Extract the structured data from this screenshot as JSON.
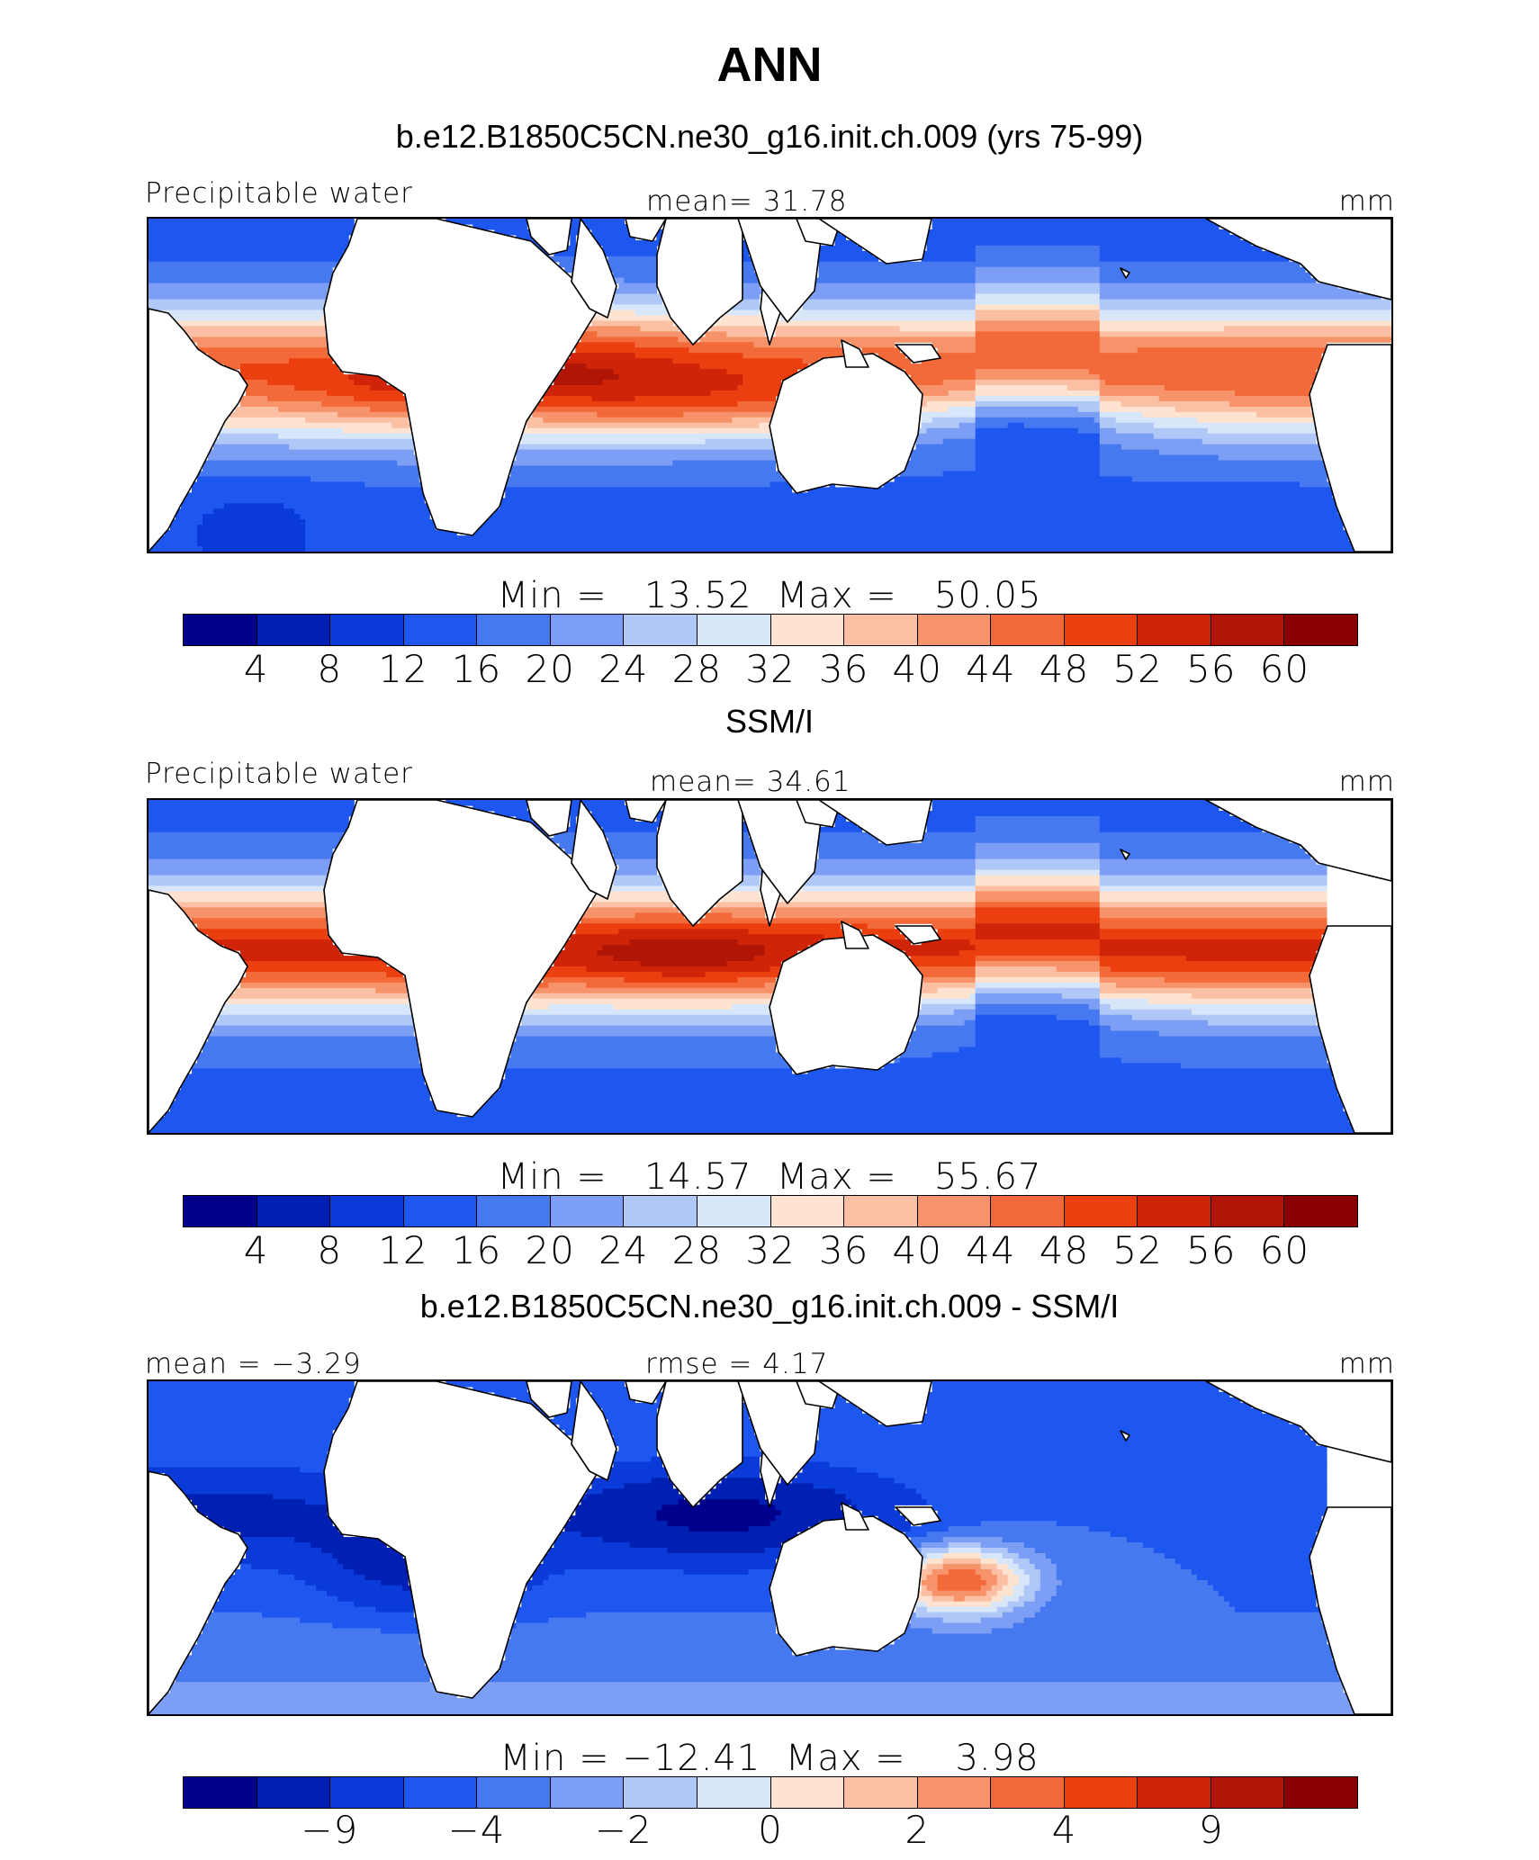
{
  "title": "ANN",
  "panels": [
    {
      "subtitle": "b.e12.B1850C5CN.ne30_g16.init.ch.009 (yrs 75-99)",
      "left_label": "Precipitable water",
      "center_label": "mean=  31.78",
      "right_label": "mm",
      "min_max": "Min =   13.52  Max =   50.05",
      "colorbar_ticks": [
        "4",
        "8",
        "12",
        "16",
        "20",
        "24",
        "28",
        "32",
        "36",
        "40",
        "44",
        "48",
        "52",
        "56",
        "60"
      ],
      "field": "model"
    },
    {
      "subtitle": "SSM/I",
      "left_label": "Precipitable water",
      "center_label": "mean=  34.61",
      "right_label": "mm",
      "min_max": "Min =   14.57  Max =   55.67",
      "colorbar_ticks": [
        "4",
        "8",
        "12",
        "16",
        "20",
        "24",
        "28",
        "32",
        "36",
        "40",
        "44",
        "48",
        "52",
        "56",
        "60"
      ],
      "field": "obs"
    },
    {
      "subtitle": "b.e12.B1850C5CN.ne30_g16.init.ch.009 - SSM/I",
      "left_label": "mean =  −3.29",
      "center_label": "rmse =    4.17",
      "right_label": "mm",
      "min_max": "Min = −12.41  Max =    3.98",
      "colorbar_ticks": [
        "−9",
        "−4",
        "−2",
        "0",
        "2",
        "4",
        "9"
      ],
      "field": "diff"
    }
  ],
  "colorbar_colors": [
    "#00008c",
    "#0020b4",
    "#0a3ad8",
    "#1e56f0",
    "#4678f0",
    "#7c9ef4",
    "#b0c8f8",
    "#d8e6fa",
    "#fde3d0",
    "#fbc0a3",
    "#f7936b",
    "#f26a3a",
    "#ec3f0f",
    "#d02408",
    "#b01505",
    "#8a0000"
  ]
}
